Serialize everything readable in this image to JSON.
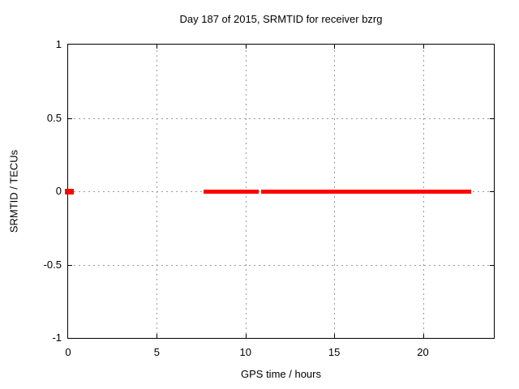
{
  "page": {
    "background": "#ffffff"
  },
  "chart_data": {
    "type": "line",
    "title": "Day 187 of 2015, SRMTID for receiver bzrg",
    "xlabel": "GPS time / hours",
    "ylabel": "SRMTID / TECUs",
    "xlim": [
      0,
      24
    ],
    "ylim": [
      -1,
      1
    ],
    "grid": true,
    "legend": "none",
    "xticks": [
      {
        "v": 0,
        "label": "0"
      },
      {
        "v": 5,
        "label": "5"
      },
      {
        "v": 10,
        "label": "10"
      },
      {
        "v": 15,
        "label": "15"
      },
      {
        "v": 20,
        "label": "20"
      }
    ],
    "yticks": [
      {
        "v": -1,
        "label": "-1"
      },
      {
        "v": -0.5,
        "label": "-0.5"
      },
      {
        "v": 0,
        "label": "0"
      },
      {
        "v": 0.5,
        "label": "0.5"
      },
      {
        "v": 1,
        "label": "1"
      }
    ],
    "series": [
      {
        "name": "SRMTID",
        "color": "#ff0000",
        "y_value": 0,
        "isolated_point_hour": 0.05,
        "segments_hours": [
          [
            7.62,
            10.73
          ],
          [
            10.9,
            22.74
          ]
        ]
      }
    ],
    "colors": {
      "series": "#ff0000",
      "grid": "#9a9a9a",
      "border": "#000000",
      "text": "#000000"
    }
  }
}
